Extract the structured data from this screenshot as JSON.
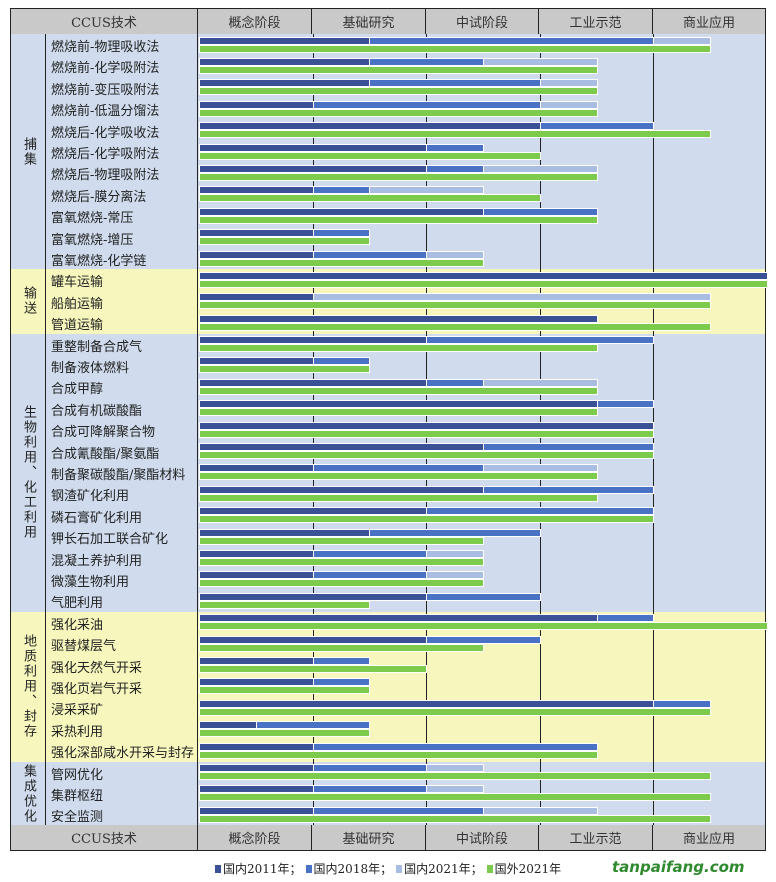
{
  "header": {
    "tech": "CCUS技术",
    "stages": [
      "概念阶段",
      "基础研究",
      "中试阶段",
      "工业示范",
      "商业应用"
    ]
  },
  "colors": {
    "cn2011": "#3a5196",
    "cn2018": "#4a72c4",
    "cn2021": "#a9bde2",
    "foreign2021": "#7dcb4c",
    "bg_blue": "#d0dcee",
    "bg_yellow": "#f6f6bd"
  },
  "legend": [
    "国内2011年；",
    "国内2018年；",
    "国内2021年；",
    "国外2021年"
  ],
  "watermark": "tanpaifang.com",
  "chart_data": {
    "type": "bar",
    "orientation": "horizontal",
    "xlabel": "",
    "xlim": [
      0,
      5
    ],
    "x_tick_labels": [
      "概念阶段",
      "基础研究",
      "中试阶段",
      "工业示范",
      "商业应用"
    ],
    "series_names": [
      "国内2011年",
      "国内2018年",
      "国内2021年",
      "国外2021年"
    ],
    "groups": [
      {
        "name": "捕集",
        "bg": "blue",
        "rows": [
          {
            "label": "燃烧前-物理吸收法",
            "values": [
              1.5,
              4,
              4.5,
              4.5
            ]
          },
          {
            "label": "燃烧前-化学吸附法",
            "values": [
              1.5,
              2.5,
              3.5,
              3.5
            ]
          },
          {
            "label": "燃烧前-变压吸附法",
            "values": [
              1.5,
              3,
              3.5,
              3.5
            ]
          },
          {
            "label": "燃烧前-低温分馏法",
            "values": [
              1,
              3,
              3.5,
              3.5
            ]
          },
          {
            "label": "燃烧后-化学吸收法",
            "values": [
              3,
              4,
              4,
              4.5
            ]
          },
          {
            "label": "燃烧后-化学吸附法",
            "values": [
              2,
              2.5,
              2.5,
              3
            ]
          },
          {
            "label": "燃烧后-物理吸附法",
            "values": [
              2,
              2.5,
              3.5,
              3.5
            ]
          },
          {
            "label": "燃烧后-膜分离法",
            "values": [
              1,
              1.5,
              2.5,
              3
            ]
          },
          {
            "label": "富氧燃烧-常压",
            "values": [
              2.5,
              3.5,
              3.5,
              3.5
            ]
          },
          {
            "label": "富氧燃烧-增压",
            "values": [
              1,
              1.5,
              1.5,
              1.5
            ]
          },
          {
            "label": "富氧燃烧-化学链",
            "values": [
              1,
              2,
              2.5,
              2.5
            ]
          }
        ]
      },
      {
        "name": "输送",
        "bg": "yellow",
        "rows": [
          {
            "label": "罐车运输",
            "values": [
              5,
              5,
              5,
              5
            ]
          },
          {
            "label": "船舶运输",
            "values": [
              1,
              1,
              4.5,
              4.5
            ]
          },
          {
            "label": "管道运输",
            "values": [
              3.5,
              3.5,
              3.5,
              4.5
            ]
          }
        ]
      },
      {
        "name": "生物利用、化工利用",
        "bg": "blue",
        "rows": [
          {
            "label": "重整制备合成气",
            "values": [
              2,
              4,
              4,
              3.5
            ]
          },
          {
            "label": "制备液体燃料",
            "values": [
              1,
              1.5,
              1.5,
              1.5
            ]
          },
          {
            "label": "合成甲醇",
            "values": [
              2,
              2.5,
              3.5,
              3.5
            ]
          },
          {
            "label": "合成有机碳酸酯",
            "values": [
              3.5,
              4,
              4,
              3.5
            ]
          },
          {
            "label": "合成可降解聚合物",
            "values": [
              4,
              4,
              4,
              4
            ]
          },
          {
            "label": "合成氰酸酯/聚氨酯",
            "values": [
              2.5,
              4,
              4,
              4
            ]
          },
          {
            "label": "制备聚碳酸酯/聚酯材料",
            "values": [
              1,
              2.5,
              3.5,
              3.5
            ]
          },
          {
            "label": "钢渣矿化利用",
            "values": [
              2.5,
              4,
              4,
              3.5
            ]
          },
          {
            "label": "磷石膏矿化利用",
            "values": [
              2,
              4,
              4,
              4
            ]
          },
          {
            "label": "钾长石加工联合矿化",
            "values": [
              1.5,
              3,
              3,
              2.5
            ]
          },
          {
            "label": "混凝土养护利用",
            "values": [
              1,
              2,
              2.5,
              2.5
            ]
          },
          {
            "label": "微藻生物利用",
            "values": [
              1,
              2,
              2.5,
              2.5
            ]
          },
          {
            "label": "气肥利用",
            "values": [
              2,
              3,
              3,
              1.5
            ]
          }
        ]
      },
      {
        "name": "地质利用、封存",
        "bg": "yellow",
        "rows": [
          {
            "label": "强化采油",
            "values": [
              3.5,
              4,
              4,
              5
            ]
          },
          {
            "label": "驱替煤层气",
            "values": [
              2,
              3,
              3,
              2.5
            ]
          },
          {
            "label": "强化天然气开采",
            "values": [
              1,
              1.5,
              1.5,
              2
            ]
          },
          {
            "label": "强化页岩气开采",
            "values": [
              1,
              1.5,
              1.5,
              1.5
            ]
          },
          {
            "label": "浸采采矿",
            "values": [
              4,
              4.5,
              4.5,
              4.5
            ]
          },
          {
            "label": "采热利用",
            "values": [
              0.5,
              1.5,
              1.5,
              1.5
            ]
          },
          {
            "label": "强化深部咸水开采与封存",
            "values": [
              1,
              3.5,
              3.5,
              3.5
            ]
          }
        ]
      },
      {
        "name": "集成优化",
        "bg": "blue",
        "rows": [
          {
            "label": "管网优化",
            "values": [
              1,
              2,
              2.5,
              4.5
            ]
          },
          {
            "label": "集群枢纽",
            "values": [
              1,
              2,
              2.5,
              4.5
            ]
          },
          {
            "label": "安全监测",
            "values": [
              1,
              2.5,
              3.5,
              4.5
            ]
          }
        ]
      }
    ]
  }
}
